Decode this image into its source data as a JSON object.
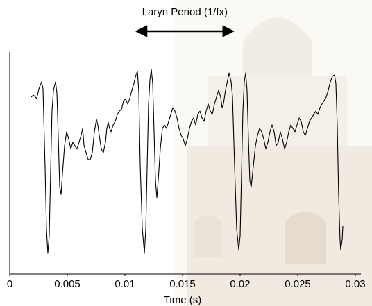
{
  "chart_data": {
    "type": "line",
    "x_label": "Time (s)",
    "annotation": {
      "text": "Laryn Period (1/fx)",
      "x": [
        0.0111,
        0.0193
      ]
    },
    "xlim": [
      0,
      0.03
    ],
    "xticks": [
      0,
      0.005,
      0.01,
      0.015,
      0.02,
      0.025,
      0.03
    ],
    "ylim": [
      0,
      1
    ],
    "series": [
      {
        "color": "#000000",
        "x": [
          0.00187,
          0.00205,
          0.00235,
          0.00253,
          0.00277,
          0.00289,
          0.00307,
          0.00319,
          0.00331,
          0.00343,
          0.00355,
          0.00367,
          0.0038,
          0.00398,
          0.0041,
          0.00422,
          0.00434,
          0.00446,
          0.00458,
          0.00476,
          0.00494,
          0.00512,
          0.0053,
          0.00548,
          0.00566,
          0.00584,
          0.00602,
          0.0062,
          0.00633,
          0.00645,
          0.00663,
          0.00681,
          0.00699,
          0.00717,
          0.00735,
          0.00753,
          0.00765,
          0.00777,
          0.00795,
          0.00813,
          0.00831,
          0.00843,
          0.00855,
          0.00867,
          0.0088,
          0.00898,
          0.00916,
          0.00934,
          0.00952,
          0.0097,
          0.00988,
          0.01006,
          0.01024,
          0.01042,
          0.0106,
          0.01078,
          0.01096,
          0.01108,
          0.0112,
          0.01133,
          0.01151,
          0.01169,
          0.01181,
          0.01193,
          0.01205,
          0.01217,
          0.01229,
          0.01241,
          0.01253,
          0.01265,
          0.01277,
          0.01289,
          0.01307,
          0.01325,
          0.01343,
          0.01361,
          0.0138,
          0.01398,
          0.01416,
          0.01434,
          0.01452,
          0.0147,
          0.01488,
          0.01506,
          0.01524,
          0.01542,
          0.0156,
          0.01578,
          0.01596,
          0.01614,
          0.01633,
          0.01651,
          0.01669,
          0.01687,
          0.01705,
          0.01723,
          0.01741,
          0.01759,
          0.01777,
          0.01795,
          0.01813,
          0.01831,
          0.01843,
          0.01855,
          0.01873,
          0.01892,
          0.01904,
          0.01922,
          0.01934,
          0.01952,
          0.0197,
          0.01988,
          0.02,
          0.02012,
          0.02024,
          0.02036,
          0.02048,
          0.0206,
          0.02072,
          0.02084,
          0.02096,
          0.02114,
          0.02133,
          0.02151,
          0.02169,
          0.02187,
          0.02205,
          0.02223,
          0.02241,
          0.02259,
          0.02277,
          0.02295,
          0.02313,
          0.02331,
          0.02349,
          0.02367,
          0.02386,
          0.02404,
          0.02422,
          0.0244,
          0.02458,
          0.02476,
          0.02494,
          0.02512,
          0.0253,
          0.02548,
          0.02566,
          0.02584,
          0.02602,
          0.0262,
          0.02639,
          0.02657,
          0.02675,
          0.02693,
          0.02711,
          0.02729,
          0.02747,
          0.02765,
          0.02783,
          0.02801,
          0.02819,
          0.02831,
          0.02843,
          0.02855,
          0.02867,
          0.02873,
          0.02886,
          0.02892
        ],
        "values": [
          0.797,
          0.806,
          0.791,
          0.834,
          0.866,
          0.834,
          0.484,
          0.203,
          0.094,
          0.172,
          0.453,
          0.734,
          0.828,
          0.866,
          0.813,
          0.609,
          0.391,
          0.359,
          0.453,
          0.578,
          0.641,
          0.609,
          0.563,
          0.594,
          0.578,
          0.563,
          0.594,
          0.625,
          0.656,
          0.578,
          0.547,
          0.516,
          0.516,
          0.547,
          0.641,
          0.697,
          0.672,
          0.625,
          0.563,
          0.547,
          0.594,
          0.656,
          0.684,
          0.656,
          0.641,
          0.672,
          0.688,
          0.719,
          0.734,
          0.741,
          0.781,
          0.788,
          0.766,
          0.791,
          0.828,
          0.859,
          0.897,
          0.913,
          0.828,
          0.484,
          0.203,
          0.094,
          0.203,
          0.484,
          0.766,
          0.875,
          0.922,
          0.859,
          0.641,
          0.422,
          0.344,
          0.422,
          0.563,
          0.656,
          0.672,
          0.656,
          0.688,
          0.719,
          0.75,
          0.734,
          0.703,
          0.656,
          0.625,
          0.609,
          0.578,
          0.609,
          0.656,
          0.688,
          0.703,
          0.672,
          0.719,
          0.734,
          0.703,
          0.688,
          0.734,
          0.766,
          0.734,
          0.719,
          0.766,
          0.797,
          0.828,
          0.797,
          0.75,
          0.766,
          0.828,
          0.875,
          0.906,
          0.866,
          0.797,
          0.484,
          0.203,
          0.109,
          0.172,
          0.453,
          0.734,
          0.866,
          0.906,
          0.828,
          0.609,
          0.422,
          0.391,
          0.484,
          0.578,
          0.625,
          0.656,
          0.641,
          0.609,
          0.563,
          0.594,
          0.641,
          0.672,
          0.641,
          0.578,
          0.594,
          0.641,
          0.609,
          0.563,
          0.594,
          0.641,
          0.672,
          0.656,
          0.641,
          0.672,
          0.703,
          0.688,
          0.641,
          0.625,
          0.656,
          0.688,
          0.703,
          0.719,
          0.734,
          0.719,
          0.75,
          0.766,
          0.781,
          0.797,
          0.828,
          0.866,
          0.891,
          0.897,
          0.859,
          0.672,
          0.359,
          0.156,
          0.109,
          0.156,
          0.219
        ]
      }
    ]
  }
}
